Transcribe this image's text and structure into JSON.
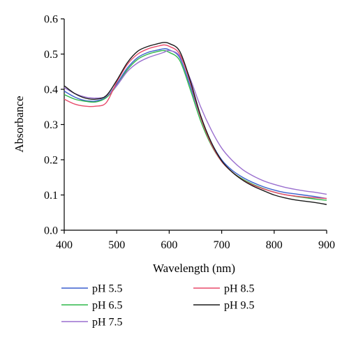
{
  "chart_data": {
    "type": "line",
    "xlabel": "Wavelength (nm)",
    "ylabel": "Absorbance",
    "xlim": [
      400,
      900
    ],
    "ylim": [
      0.0,
      0.6
    ],
    "x_ticks": [
      "400",
      "500",
      "600",
      "700",
      "800",
      "900"
    ],
    "y_ticks": [
      "0.0",
      "0.1",
      "0.2",
      "0.3",
      "0.4",
      "0.5",
      "0.6"
    ],
    "grid": false,
    "legend_position": "bottom",
    "x": [
      400,
      420,
      440,
      460,
      480,
      500,
      520,
      540,
      560,
      580,
      590,
      600,
      620,
      640,
      660,
      680,
      700,
      720,
      740,
      760,
      780,
      800,
      820,
      840,
      860,
      880,
      900
    ],
    "series": [
      {
        "name": "pH 5.5",
        "color": "#3a5fcd",
        "values": [
          0.395,
          0.378,
          0.368,
          0.367,
          0.378,
          0.415,
          0.46,
          0.49,
          0.505,
          0.512,
          0.515,
          0.512,
          0.49,
          0.41,
          0.32,
          0.25,
          0.2,
          0.17,
          0.15,
          0.135,
          0.123,
          0.114,
          0.107,
          0.103,
          0.099,
          0.095,
          0.09
        ]
      },
      {
        "name": "pH 6.5",
        "color": "#2fb84a",
        "values": [
          0.385,
          0.372,
          0.366,
          0.364,
          0.376,
          0.41,
          0.455,
          0.485,
          0.5,
          0.508,
          0.51,
          0.505,
          0.482,
          0.4,
          0.31,
          0.242,
          0.195,
          0.165,
          0.145,
          0.13,
          0.118,
          0.108,
          0.101,
          0.096,
          0.092,
          0.088,
          0.085
        ]
      },
      {
        "name": "pH 7.5",
        "color": "#9a6fcf",
        "values": [
          0.405,
          0.388,
          0.378,
          0.375,
          0.38,
          0.41,
          0.45,
          0.475,
          0.49,
          0.5,
          0.505,
          0.51,
          0.495,
          0.43,
          0.35,
          0.285,
          0.233,
          0.198,
          0.172,
          0.154,
          0.14,
          0.13,
          0.122,
          0.116,
          0.111,
          0.107,
          0.102
        ]
      },
      {
        "name": "pH 8.5",
        "color": "#e84a6a",
        "values": [
          0.372,
          0.358,
          0.352,
          0.352,
          0.362,
          0.42,
          0.47,
          0.5,
          0.515,
          0.523,
          0.526,
          0.522,
          0.5,
          0.42,
          0.32,
          0.245,
          0.195,
          0.165,
          0.143,
          0.128,
          0.117,
          0.108,
          0.101,
          0.097,
          0.094,
          0.092,
          0.09
        ]
      },
      {
        "name": "pH 9.5",
        "color": "#1a1a1a",
        "values": [
          0.41,
          0.388,
          0.375,
          0.372,
          0.382,
          0.425,
          0.475,
          0.508,
          0.522,
          0.53,
          0.533,
          0.53,
          0.508,
          0.425,
          0.325,
          0.25,
          0.197,
          0.165,
          0.142,
          0.125,
          0.112,
          0.1,
          0.092,
          0.086,
          0.082,
          0.078,
          0.073
        ]
      }
    ]
  }
}
